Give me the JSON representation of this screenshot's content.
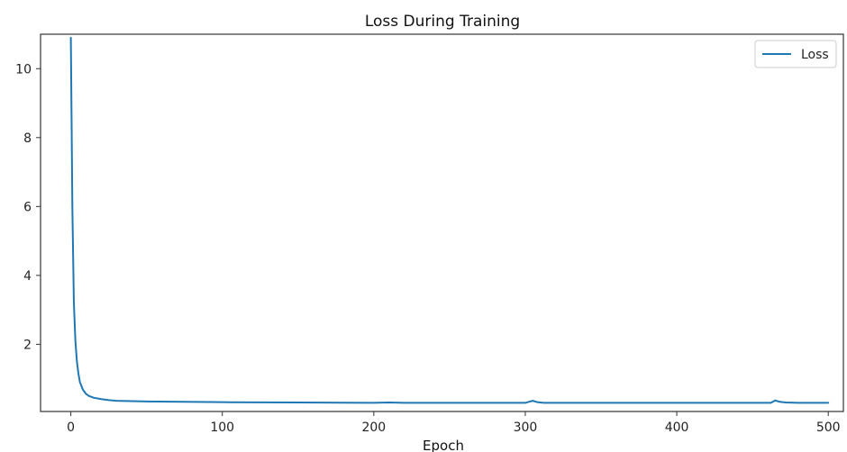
{
  "chart_data": {
    "type": "line",
    "title": "Loss During Training",
    "xlabel": "Epoch",
    "ylabel": "",
    "xlim": [
      -20,
      510
    ],
    "ylim": [
      0.05,
      11.0
    ],
    "grid": false,
    "legend_position": "top-right",
    "x_ticks": [
      0,
      100,
      200,
      300,
      400,
      500
    ],
    "y_ticks": [
      2,
      4,
      6,
      8,
      10
    ],
    "series": [
      {
        "name": "Loss",
        "color": "#1f77b4",
        "x": [
          0,
          1,
          2,
          3,
          4,
          5,
          6,
          8,
          10,
          12,
          15,
          20,
          25,
          30,
          40,
          50,
          75,
          100,
          150,
          200,
          210,
          220,
          250,
          300,
          303,
          305,
          308,
          312,
          350,
          400,
          450,
          462,
          465,
          468,
          472,
          480,
          500
        ],
        "y": [
          10.9,
          6.0,
          3.2,
          2.1,
          1.5,
          1.15,
          0.9,
          0.68,
          0.56,
          0.5,
          0.45,
          0.41,
          0.38,
          0.36,
          0.35,
          0.34,
          0.33,
          0.32,
          0.31,
          0.3,
          0.31,
          0.3,
          0.3,
          0.3,
          0.34,
          0.36,
          0.32,
          0.3,
          0.3,
          0.3,
          0.3,
          0.3,
          0.37,
          0.33,
          0.31,
          0.3,
          0.3
        ]
      }
    ]
  }
}
